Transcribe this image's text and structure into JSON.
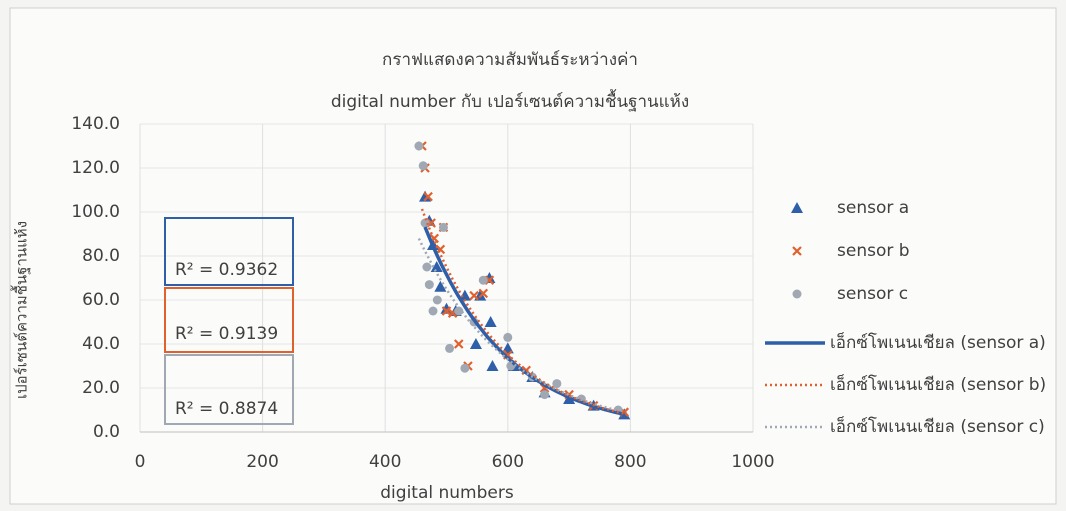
{
  "chart_data": {
    "type": "scatter",
    "title": "กราฟแสดงความสัมพันธ์ระหว่างค่า",
    "subtitle": "digital number กับ เปอร์เซนต์ความชื้นฐานแห้ง",
    "x_label": "digital numbers",
    "y_label": "เปอร์เซนต์ความชื้นฐานแห้ง",
    "xlim": [
      0,
      1000
    ],
    "xticks": [
      0,
      200,
      400,
      600,
      800,
      1000
    ],
    "ylim": [
      0,
      140
    ],
    "yticks": [
      {
        "value": 0,
        "label": "0.0"
      },
      {
        "value": 20,
        "label": "20.0"
      },
      {
        "value": 40,
        "label": "40.0"
      },
      {
        "value": 60,
        "label": "60.0"
      },
      {
        "value": 80,
        "label": "80.0"
      },
      {
        "value": 100,
        "label": "100.0"
      },
      {
        "value": 120,
        "label": "120.0"
      },
      {
        "value": 140,
        "label": "140.0"
      }
    ],
    "grid": true,
    "legend": "right",
    "series": [
      {
        "name": "sensor a",
        "color": "#2e5fa8",
        "marker": "triangle",
        "trendline": "exponential",
        "trendline_style": "solid",
        "trendline_label": "เอ็กซ์โพเนนเชียล (sensor a)",
        "r2_label": "R² = 0.9362",
        "x": [
          465,
          472,
          478,
          484,
          490,
          500,
          515,
          530,
          548,
          555,
          570,
          572,
          575,
          600,
          610,
          640,
          660,
          700,
          740,
          790
        ],
        "values": [
          107,
          96,
          85,
          75,
          66,
          56,
          55,
          62,
          40,
          62,
          70,
          50,
          30,
          38,
          30,
          25,
          18,
          15,
          12,
          8
        ]
      },
      {
        "name": "sensor b",
        "color": "#e0602e",
        "marker": "x",
        "trendline": "exponential",
        "trendline_style": "dotted",
        "trendline_label": "เอ็กซ์โพเนนเชียล (sensor b)",
        "r2_label": "R² = 0.9139",
        "x": [
          460,
          465,
          470,
          475,
          480,
          490,
          495,
          500,
          510,
          520,
          535,
          545,
          560,
          570,
          600,
          630,
          660,
          700,
          740,
          790
        ],
        "values": [
          130,
          120,
          107,
          95,
          88,
          83,
          93,
          55,
          54,
          40,
          30,
          62,
          63,
          69,
          35,
          28,
          20,
          17,
          12,
          9
        ]
      },
      {
        "name": "sensor c",
        "color": "#a0a8b4",
        "marker": "circle",
        "trendline": "exponential",
        "trendline_style": "dotted",
        "trendline_label": "เอ็กซ์โพเนนเชียล (sensor c)",
        "r2_label": "R² = 0.8874",
        "x": [
          455,
          462,
          465,
          468,
          472,
          478,
          485,
          495,
          505,
          520,
          530,
          545,
          560,
          600,
          605,
          640,
          660,
          680,
          720,
          780
        ],
        "values": [
          130,
          121,
          95,
          75,
          67,
          55,
          60,
          93,
          38,
          55,
          29,
          50,
          69,
          43,
          30,
          25,
          17,
          22,
          15,
          10
        ]
      }
    ]
  }
}
